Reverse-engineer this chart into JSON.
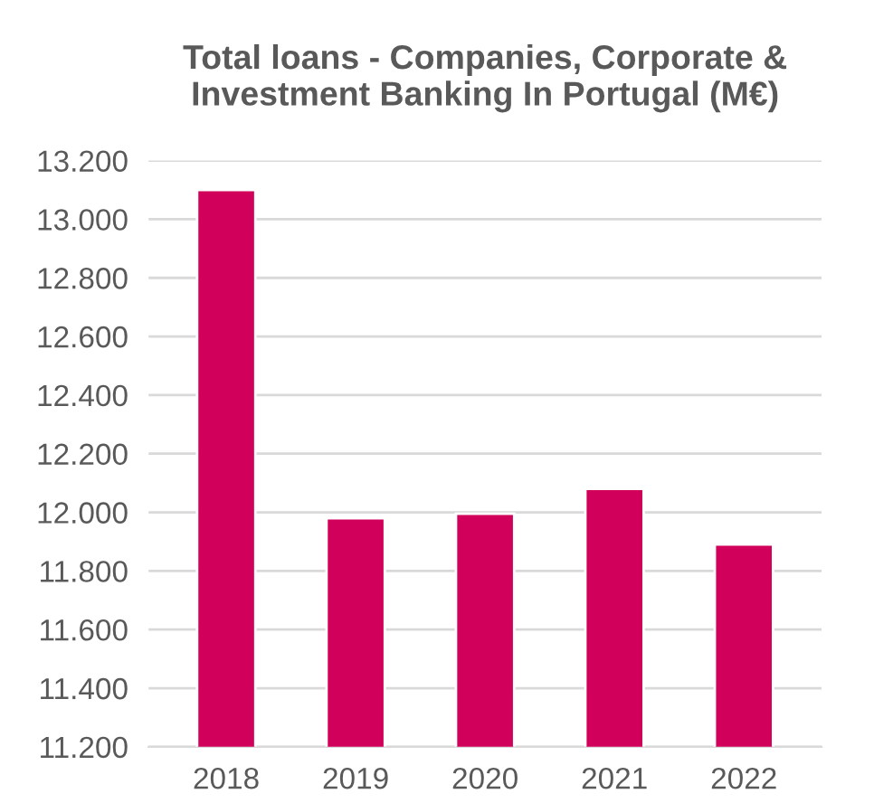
{
  "chart_data": {
    "type": "bar",
    "title": "Total loans - Companies, Corporate &\nInvestment Banking In Portugal (M€)",
    "categories": [
      "2018",
      "2019",
      "2020",
      "2021",
      "2022"
    ],
    "values": [
      13100,
      11980,
      11995,
      12080,
      11890
    ],
    "color": "#d1005a",
    "ylim": [
      11200,
      13200
    ],
    "yticks": [
      {
        "value": 11200,
        "label": "11.200"
      },
      {
        "value": 11400,
        "label": "11.400"
      },
      {
        "value": 11600,
        "label": "11.600"
      },
      {
        "value": 11800,
        "label": "11.800"
      },
      {
        "value": 12000,
        "label": "12.000"
      },
      {
        "value": 12200,
        "label": "12.200"
      },
      {
        "value": 12400,
        "label": "12.400"
      },
      {
        "value": 12600,
        "label": "12.600"
      },
      {
        "value": 12800,
        "label": "12.800"
      },
      {
        "value": 13000,
        "label": "13.000"
      },
      {
        "value": 13200,
        "label": "13.200"
      }
    ],
    "grid": "y"
  }
}
